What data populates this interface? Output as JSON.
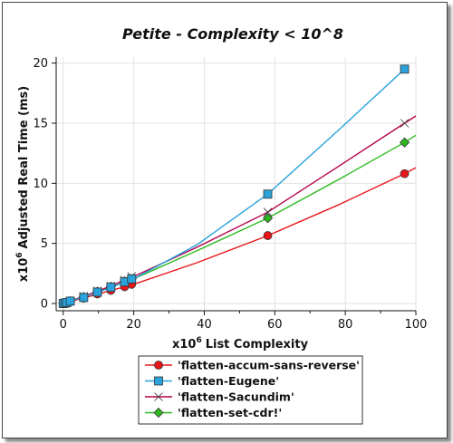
{
  "chart_data": {
    "type": "line",
    "title": "Petite - Complexity < 10^8",
    "x_unit_prefix": "x10",
    "x_unit_exponent": "6",
    "xlabel": "List Complexity",
    "y_unit_prefix": "x10",
    "y_unit_exponent": "6",
    "ylabel": "Adjusted Real Time (ms)",
    "xlim": [
      -2,
      100
    ],
    "ylim": [
      -0.6,
      20.5
    ],
    "xticks": [
      0,
      20,
      40,
      60,
      80,
      100
    ],
    "yticks": [
      0,
      5,
      10,
      15,
      20
    ],
    "grid": true,
    "legend_position": "bottom",
    "series": [
      {
        "name": "'flatten-accum-sans-reverse'",
        "color": "#e8161b",
        "marker": "circle",
        "x": [
          0.0,
          0.5,
          1.0,
          2.0,
          5.8,
          9.7,
          13.5,
          17.4,
          19.4,
          58.0,
          96.8
        ],
        "y": [
          0.0,
          0.03,
          0.06,
          0.15,
          0.45,
          0.8,
          1.1,
          1.4,
          1.6,
          5.65,
          10.8
        ],
        "curve_x": [
          0,
          10,
          20,
          38,
          58,
          78,
          96.8,
          100
        ],
        "curve_y": [
          0,
          0.8,
          1.6,
          3.4,
          5.65,
          8.2,
          10.8,
          11.3
        ]
      },
      {
        "name": "'flatten-Eugene'",
        "color": "#2aa3dc",
        "marker": "square",
        "x": [
          0.0,
          0.5,
          1.0,
          2.0,
          5.8,
          9.7,
          13.5,
          17.4,
          19.4,
          58.0,
          96.8
        ],
        "y": [
          0.0,
          0.04,
          0.08,
          0.2,
          0.5,
          0.95,
          1.35,
          1.8,
          2.05,
          9.1,
          19.5
        ],
        "curve_x": [
          0,
          10,
          20,
          38,
          58,
          78,
          96.8
        ],
        "curve_y": [
          0,
          0.95,
          2.05,
          4.9,
          9.1,
          14.4,
          19.5
        ]
      },
      {
        "name": "'flatten-Sacundim'",
        "color": "#b5004a",
        "marker": "bowtie",
        "x": [
          0.0,
          0.5,
          1.0,
          2.0,
          5.8,
          9.7,
          13.5,
          17.4,
          19.4,
          58.0,
          96.8
        ],
        "y": [
          0.0,
          0.04,
          0.08,
          0.2,
          0.6,
          1.05,
          1.45,
          1.95,
          2.25,
          7.6,
          15.0
        ],
        "curve_x": [
          0,
          10,
          20,
          38,
          58,
          78,
          96.8,
          100
        ],
        "curve_y": [
          0,
          1.05,
          2.25,
          4.7,
          7.6,
          11.4,
          15.0,
          15.6
        ]
      },
      {
        "name": "'flatten-set-cdr!'",
        "color": "#2db81f",
        "marker": "diamond",
        "x": [
          0.0,
          0.5,
          1.0,
          2.0,
          5.8,
          9.7,
          13.5,
          17.4,
          19.4,
          58.0,
          96.8
        ],
        "y": [
          0.0,
          0.04,
          0.08,
          0.2,
          0.55,
          1.0,
          1.4,
          1.85,
          2.05,
          7.1,
          13.4
        ],
        "curve_x": [
          0,
          10,
          20,
          38,
          58,
          78,
          96.8,
          100
        ],
        "curve_y": [
          0,
          1.0,
          2.05,
          4.4,
          7.1,
          10.3,
          13.4,
          14.0
        ]
      }
    ]
  }
}
